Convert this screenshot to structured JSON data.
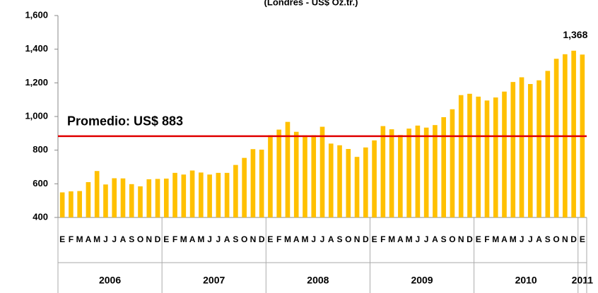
{
  "chart_data": {
    "type": "bar",
    "subtitle": "(Londres - US$ Oz.tr.)",
    "categories": [
      "E",
      "F",
      "M",
      "A",
      "M",
      "J",
      "J",
      "A",
      "S",
      "O",
      "N",
      "D",
      "E",
      "F",
      "M",
      "A",
      "M",
      "J",
      "J",
      "A",
      "S",
      "O",
      "N",
      "D",
      "E",
      "F",
      "M",
      "A",
      "M",
      "J",
      "J",
      "A",
      "S",
      "O",
      "N",
      "D",
      "E",
      "F",
      "M",
      "A",
      "M",
      "J",
      "J",
      "A",
      "S",
      "O",
      "N",
      "D",
      "E",
      "F",
      "M",
      "A",
      "M",
      "J",
      "J",
      "A",
      "S",
      "O",
      "N",
      "D",
      "E"
    ],
    "x_groups": [
      "2006",
      "2007",
      "2008",
      "2009",
      "2010",
      "2011"
    ],
    "values": [
      549,
      555,
      557,
      610,
      676,
      596,
      633,
      632,
      598,
      585,
      627,
      629,
      631,
      665,
      655,
      679,
      667,
      655,
      665,
      665,
      712,
      754,
      806,
      803,
      889,
      922,
      968,
      909,
      888,
      889,
      939,
      839,
      829,
      807,
      760,
      816,
      858,
      943,
      924,
      890,
      928,
      946,
      934,
      949,
      996,
      1043,
      1127,
      1135,
      1118,
      1095,
      1113,
      1148,
      1205,
      1233,
      1193,
      1215,
      1271,
      1343,
      1370,
      1391,
      1368
    ],
    "value_labels": [
      null,
      null,
      null,
      null,
      null,
      null,
      null,
      null,
      null,
      null,
      null,
      null,
      null,
      null,
      null,
      null,
      null,
      null,
      null,
      null,
      null,
      null,
      null,
      null,
      null,
      null,
      null,
      null,
      null,
      null,
      null,
      null,
      null,
      null,
      null,
      null,
      null,
      null,
      null,
      null,
      null,
      null,
      null,
      null,
      null,
      null,
      null,
      null,
      null,
      null,
      null,
      null,
      null,
      null,
      null,
      null,
      null,
      null,
      null,
      null,
      "1,368"
    ],
    "color": "#ffc000",
    "ylim": [
      400,
      1600
    ],
    "yticks": [
      400,
      600,
      800,
      {
        "value": 1000,
        "label": "1,000"
      },
      {
        "value": 1200,
        "label": "1,200"
      },
      {
        "value": 1400,
        "label": "1,400"
      },
      {
        "value": 1600,
        "label": "1,600"
      }
    ],
    "reference_line": {
      "value": 883,
      "label": "Promedio: US$ 883",
      "color": "#e00000"
    },
    "grid": false
  }
}
